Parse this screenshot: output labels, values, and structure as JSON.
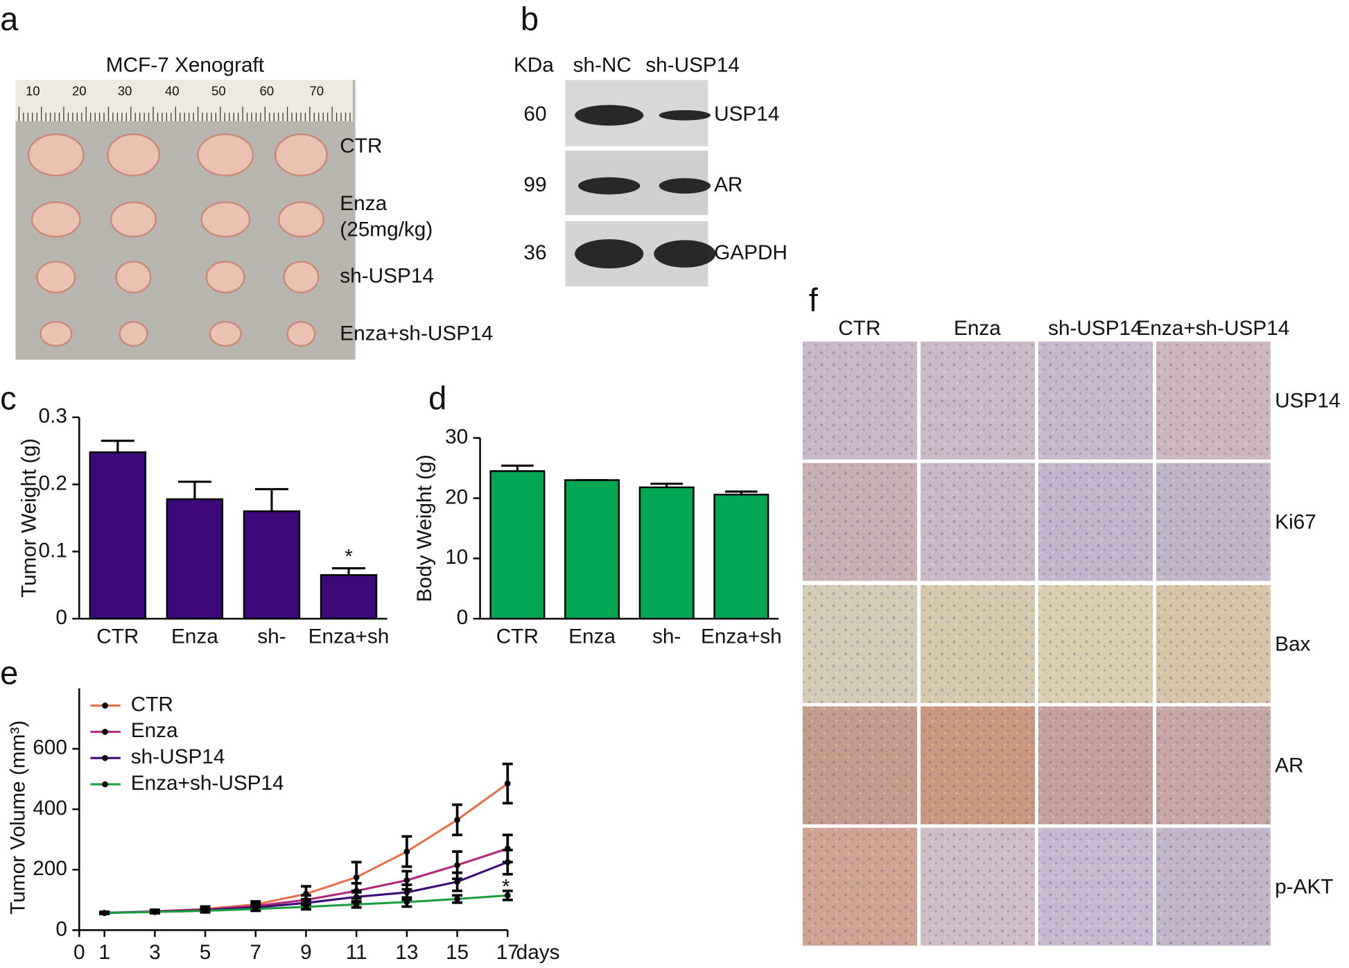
{
  "panel_labels": [
    "a",
    "b",
    "c",
    "d",
    "e",
    "f"
  ],
  "panel_a": {
    "title": "MCF-7  Xenograft",
    "ruler": [
      "10",
      "20",
      "30",
      "40",
      "50",
      "60",
      "70"
    ],
    "row_labels": [
      "CTR",
      "Enza",
      "(25mg/kg)",
      "sh-USP14",
      "Enza+sh-USP14"
    ]
  },
  "panel_b": {
    "unit": "KDa",
    "lanes": [
      "sh-NC",
      "sh-USP14"
    ],
    "rows": [
      {
        "kda": 60,
        "label": "USP14"
      },
      {
        "kda": 99,
        "label": "AR"
      },
      {
        "kda": 36,
        "label": "GAPDH"
      }
    ]
  },
  "panel_f": {
    "columns": [
      "CTR",
      "Enza",
      "sh-USP14",
      "Enza+sh-USP14"
    ],
    "rows": [
      "USP14",
      "Ki67",
      "Bax",
      "AR",
      "p-AKT"
    ]
  },
  "chart_data": [
    {
      "type": "bar",
      "y_label": "Tumor Weight (g)",
      "categories": [
        "CTR",
        "Enza",
        "sh-",
        "Enza+sh"
      ],
      "values": [
        0.248,
        0.178,
        0.16,
        0.065
      ],
      "errors": [
        0.017,
        0.026,
        0.033,
        0.01
      ],
      "color": "#3b0a78",
      "ylim": [
        0,
        0.3
      ],
      "yticks": [
        0,
        0.1,
        0.2,
        0.3
      ],
      "annotation": "*"
    },
    {
      "type": "bar",
      "y_label": "Body Weight (g)",
      "categories": [
        "CTR",
        "Enza",
        "sh-",
        "Enza+sh"
      ],
      "values": [
        24.5,
        23,
        21.8,
        20.6
      ],
      "errors": [
        0.9,
        0,
        0.6,
        0.5
      ],
      "color": "#00a651",
      "ylim": [
        0,
        30
      ],
      "yticks": [
        0,
        10,
        20,
        30
      ]
    },
    {
      "type": "line",
      "y_label": "Tumor Volume (mm³)",
      "x_label": "days",
      "x": [
        1,
        3,
        5,
        7,
        9,
        11,
        13,
        15,
        17
      ],
      "xlim": [
        0,
        17
      ],
      "xticks": [
        0,
        1,
        3,
        5,
        7,
        9,
        11,
        13,
        15,
        17
      ],
      "ylim": [
        0,
        800
      ],
      "yticks": [
        0,
        200,
        400,
        600
      ],
      "annotation": "*",
      "series": [
        {
          "name": "CTR",
          "color": "#e8704a",
          "values": [
            57,
            62,
            70,
            85,
            120,
            175,
            260,
            365,
            485
          ],
          "errors": [
            3,
            5,
            8,
            10,
            25,
            50,
            50,
            50,
            65
          ]
        },
        {
          "name": "Enza",
          "color": "#b5267b",
          "values": [
            57,
            62,
            68,
            80,
            100,
            130,
            165,
            215,
            270
          ],
          "errors": [
            3,
            5,
            6,
            8,
            15,
            25,
            30,
            45,
            45
          ]
        },
        {
          "name": "sh-USP14",
          "color": "#3b0a78",
          "values": [
            57,
            61,
            66,
            75,
            90,
            110,
            125,
            160,
            225
          ],
          "errors": [
            3,
            4,
            5,
            7,
            12,
            20,
            25,
            30,
            40
          ]
        },
        {
          "name": "Enza+sh-USP14",
          "color": "#1a9e3e",
          "values": [
            57,
            60,
            64,
            70,
            77,
            85,
            93,
            103,
            115
          ],
          "errors": [
            3,
            4,
            5,
            6,
            8,
            10,
            15,
            12,
            15
          ]
        }
      ]
    }
  ]
}
